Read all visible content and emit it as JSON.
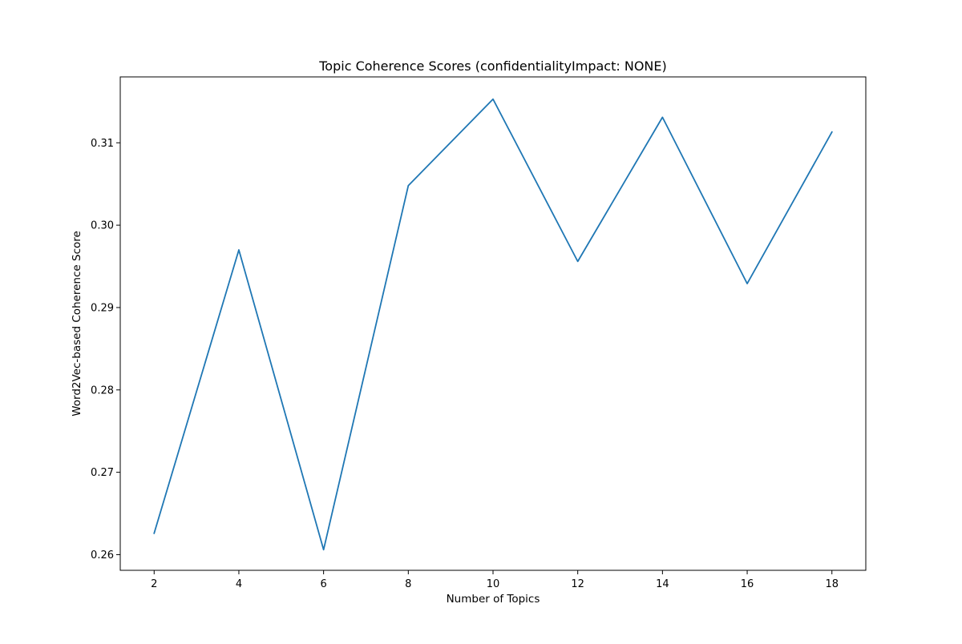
{
  "chart_data": {
    "type": "line",
    "title": "Topic Coherence Scores (confidentialityImpact: NONE)",
    "xlabel": "Number of Topics",
    "ylabel": "Word2Vec-based Coherence Score",
    "x": [
      2,
      4,
      6,
      8,
      10,
      12,
      14,
      16,
      18
    ],
    "series": [
      {
        "values": [
          0.2626,
          0.297,
          0.2606,
          0.3048,
          0.3153,
          0.2956,
          0.3131,
          0.2929,
          0.3113
        ]
      }
    ],
    "xticks": [
      2,
      4,
      6,
      8,
      10,
      12,
      14,
      16,
      18
    ],
    "xtick_labels": [
      "2",
      "4",
      "6",
      "8",
      "10",
      "12",
      "14",
      "16",
      "18"
    ],
    "yticks": [
      0.26,
      0.27,
      0.28,
      0.29,
      0.3,
      0.31
    ],
    "ytick_labels": [
      "0.26",
      "0.27",
      "0.28",
      "0.29",
      "0.30",
      "0.31"
    ],
    "xlim": [
      1.2,
      18.8
    ],
    "ylim": [
      0.2581,
      0.318
    ],
    "grid": false,
    "legend": "none",
    "colors": {
      "line": "#1f77b4",
      "axes": "#000000",
      "background": "#ffffff"
    }
  }
}
